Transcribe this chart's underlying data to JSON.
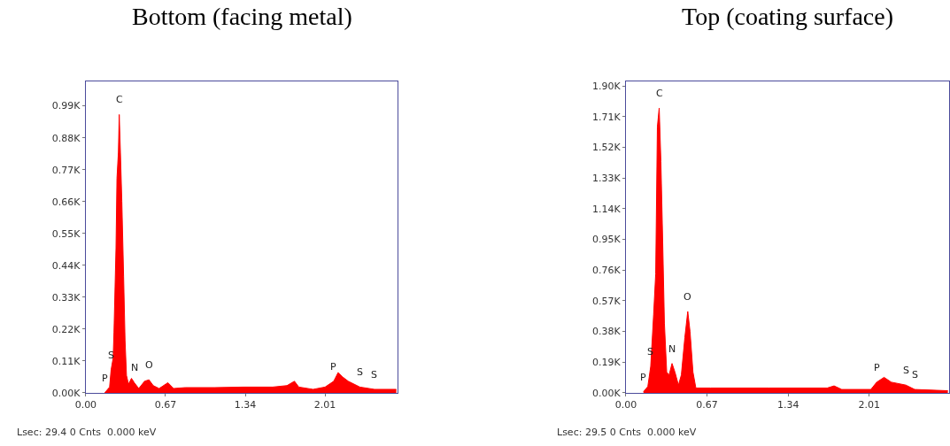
{
  "chart_data": [
    {
      "type": "area",
      "title": "Bottom (facing metal)",
      "color": "#ff0000",
      "x": [
        0.159,
        0.2,
        0.213,
        0.23,
        0.237,
        0.254,
        0.262,
        0.274,
        0.281,
        0.291,
        0.303,
        0.318,
        0.33,
        0.342,
        0.359,
        0.384,
        0.408,
        0.445,
        0.494,
        0.531,
        0.567,
        0.616,
        0.69,
        0.738,
        0.836,
        1.08,
        1.325,
        1.57,
        1.69,
        1.753,
        1.79,
        1.91,
        2.01,
        2.083,
        2.12,
        2.157,
        2.205,
        2.303,
        2.425,
        2.609
      ],
      "values": [
        0,
        20,
        80,
        120,
        210,
        500,
        740,
        830,
        960,
        830,
        660,
        400,
        180,
        60,
        30,
        50,
        35,
        15,
        40,
        45,
        25,
        15,
        35,
        15,
        18,
        18,
        20,
        20,
        25,
        40,
        20,
        12,
        20,
        40,
        70,
        55,
        40,
        20,
        12,
        12
      ],
      "xlim": [
        0,
        2.62
      ],
      "xticks": [
        {
          "value": 0,
          "label": "0.00"
        },
        0.67,
        1.34,
        2.01
      ],
      "ylim": [
        0,
        1075
      ],
      "yticks": [
        {
          "value": 0,
          "label": "0.00K"
        },
        {
          "value": 110,
          "label": "0.11K"
        },
        {
          "value": 220,
          "label": "0.22K"
        },
        {
          "value": 330,
          "label": "0.33K"
        },
        {
          "value": 440,
          "label": "0.44K"
        },
        {
          "value": 550,
          "label": "0.55K"
        },
        {
          "value": 660,
          "label": "0.66K"
        },
        {
          "value": 770,
          "label": "0.77K"
        },
        {
          "value": 880,
          "label": "0.88K"
        },
        {
          "value": 990,
          "label": "0.99K"
        }
      ],
      "annotations": [
        {
          "text": "C",
          "x": 0.281,
          "y": 960
        },
        {
          "text": "S",
          "x": 0.213,
          "y": 80
        },
        {
          "text": "P",
          "x": 0.159,
          "y": 0
        },
        {
          "text": "N",
          "x": 0.408,
          "y": 35
        },
        {
          "text": "O",
          "x": 0.531,
          "y": 45
        },
        {
          "text": "P",
          "x": 2.083,
          "y": 40
        },
        {
          "text": "S",
          "x": 2.303,
          "y": 20
        },
        {
          "text": "S",
          "x": 2.425,
          "y": 12
        },
        "Lsec: 29.4 0 Cnts  0.000 keV"
      ]
    },
    {
      "type": "area",
      "title": "Top (coating surface)",
      "color": "#ff0000",
      "x": [
        0.145,
        0.181,
        0.205,
        0.229,
        0.246,
        0.26,
        0.275,
        0.289,
        0.304,
        0.318,
        0.337,
        0.357,
        0.381,
        0.405,
        0.434,
        0.458,
        0.487,
        0.511,
        0.53,
        0.554,
        0.578,
        0.699,
        1.18,
        1.663,
        1.72,
        1.783,
        2.024,
        2.072,
        2.133,
        2.193,
        2.313,
        2.386,
        2.66
      ],
      "values": [
        7,
        39,
        164,
        486,
        736,
        1648,
        1764,
        1433,
        932,
        432,
        129,
        111,
        182,
        129,
        48,
        111,
        343,
        504,
        379,
        129,
        30,
        30,
        30,
        30,
        43,
        21,
        21,
        66,
        96,
        66,
        48,
        21,
        13
      ],
      "xlim": [
        0,
        2.67
      ],
      "xticks": [
        {
          "value": 0,
          "label": "0.00"
        },
        0.67,
        1.34,
        2.01
      ],
      "ylim": [
        0,
        1930
      ],
      "yticks": [
        {
          "value": 0,
          "label": "0.00K"
        },
        {
          "value": 190,
          "label": "0.19K"
        },
        {
          "value": 380,
          "label": "0.38K"
        },
        {
          "value": 570,
          "label": "0.57K"
        },
        {
          "value": 760,
          "label": "0.76K"
        },
        {
          "value": 950,
          "label": "0.95K"
        },
        {
          "value": 1140,
          "label": "1.14K"
        },
        {
          "value": 1330,
          "label": "1.33K"
        },
        {
          "value": 1520,
          "label": "1.52K"
        },
        {
          "value": 1710,
          "label": "1.71K"
        },
        {
          "value": 1900,
          "label": "1.90K"
        }
      ],
      "annotations": [
        {
          "text": "C",
          "x": 0.275,
          "y": 1764
        },
        {
          "text": "S",
          "x": 0.205,
          "y": 164
        },
        {
          "text": "P",
          "x": 0.145,
          "y": 7
        },
        {
          "text": "N",
          "x": 0.381,
          "y": 182
        },
        {
          "text": "O",
          "x": 0.511,
          "y": 504
        },
        {
          "text": "P",
          "x": 2.072,
          "y": 66
        },
        {
          "text": "S",
          "x": 2.313,
          "y": 48
        },
        {
          "text": "S",
          "x": 2.386,
          "y": 21
        },
        "Lsec: 29.5 0 Cnts  0.000 keV"
      ]
    }
  ]
}
